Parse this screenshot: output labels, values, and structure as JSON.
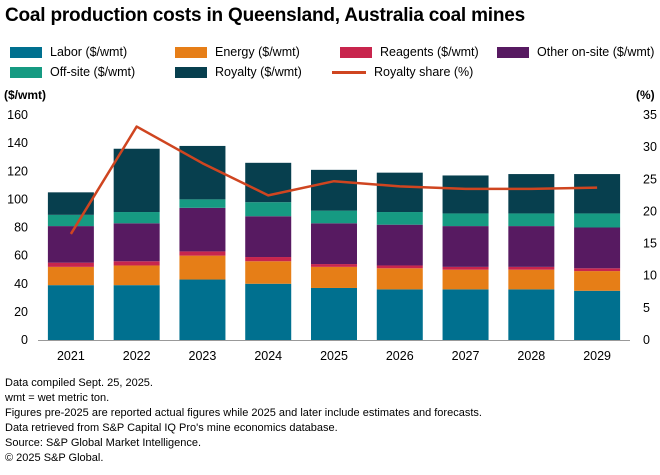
{
  "title": "Coal production costs in Queensland, Australia coal mines",
  "colors": {
    "labor": "#00708f",
    "energy": "#e67e17",
    "reagents": "#c8254d",
    "other_on_site": "#571a61",
    "off_site": "#169a82",
    "royalty": "#073f4e",
    "royalty_share": "#cf4520",
    "axis": "#999999",
    "grid": "#dddddd"
  },
  "legend": [
    {
      "key": "labor",
      "label": "Labor ($/wmt)",
      "kind": "bar"
    },
    {
      "key": "energy",
      "label": "Energy ($/wmt)",
      "kind": "bar"
    },
    {
      "key": "reagents",
      "label": "Reagents ($/wmt)",
      "kind": "bar"
    },
    {
      "key": "other_on_site",
      "label": "Other on-site ($/wmt)",
      "kind": "bar"
    },
    {
      "key": "off_site",
      "label": "Off-site ($/wmt)",
      "kind": "bar"
    },
    {
      "key": "royalty",
      "label": "Royalty ($/wmt)",
      "kind": "bar"
    },
    {
      "key": "royalty_share",
      "label": "Royalty share (%)",
      "kind": "line"
    }
  ],
  "chart_data": {
    "type": "bar",
    "stacked": true,
    "categories": [
      "2021",
      "2022",
      "2023",
      "2024",
      "2025",
      "2026",
      "2027",
      "2028",
      "2029"
    ],
    "series": [
      {
        "key": "labor",
        "name": "Labor ($/wmt)",
        "values": [
          39,
          39,
          43,
          40,
          37,
          36,
          36,
          36,
          35
        ]
      },
      {
        "key": "energy",
        "name": "Energy ($/wmt)",
        "values": [
          13,
          14,
          17,
          16,
          15,
          15,
          14,
          14,
          14
        ]
      },
      {
        "key": "reagents",
        "name": "Reagents ($/wmt)",
        "values": [
          3,
          3,
          3,
          3,
          2,
          2,
          2,
          2,
          2
        ]
      },
      {
        "key": "other_on_site",
        "name": "Other on-site ($/wmt)",
        "values": [
          26,
          27,
          31,
          29,
          29,
          29,
          29,
          29,
          29
        ]
      },
      {
        "key": "off_site",
        "name": "Off-site ($/wmt)",
        "values": [
          8,
          8,
          6,
          10,
          9,
          9,
          9,
          9,
          10
        ]
      },
      {
        "key": "royalty",
        "name": "Royalty ($/wmt)",
        "values": [
          16,
          45,
          38,
          28,
          29,
          28,
          27,
          28,
          28
        ]
      }
    ],
    "line_series": {
      "key": "royalty_share",
      "name": "Royalty share (%)",
      "axis": "right",
      "values": [
        16.5,
        33.2,
        27.5,
        22.5,
        24.7,
        23.9,
        23.5,
        23.5,
        23.7
      ]
    },
    "y_left": {
      "label": "($/wmt)",
      "min": 0,
      "max": 160,
      "ticks": [
        0,
        20,
        40,
        60,
        80,
        100,
        120,
        140,
        160
      ]
    },
    "y_right": {
      "label": "(%)",
      "min": 0,
      "max": 35,
      "ticks": [
        0,
        5,
        10,
        15,
        20,
        25,
        30,
        35
      ]
    },
    "grid": false,
    "legend_position": "top"
  },
  "notes": [
    "Data compiled Sept. 25, 2025.",
    "wmt = wet metric ton.",
    "Figures pre-2025 are reported actual figures while 2025 and later include estimates and forecasts.",
    "Data retrieved from S&P Capital IQ Pro's mine economics database.",
    "Source: S&P Global Market Intelligence.",
    "© 2025 S&P Global."
  ]
}
